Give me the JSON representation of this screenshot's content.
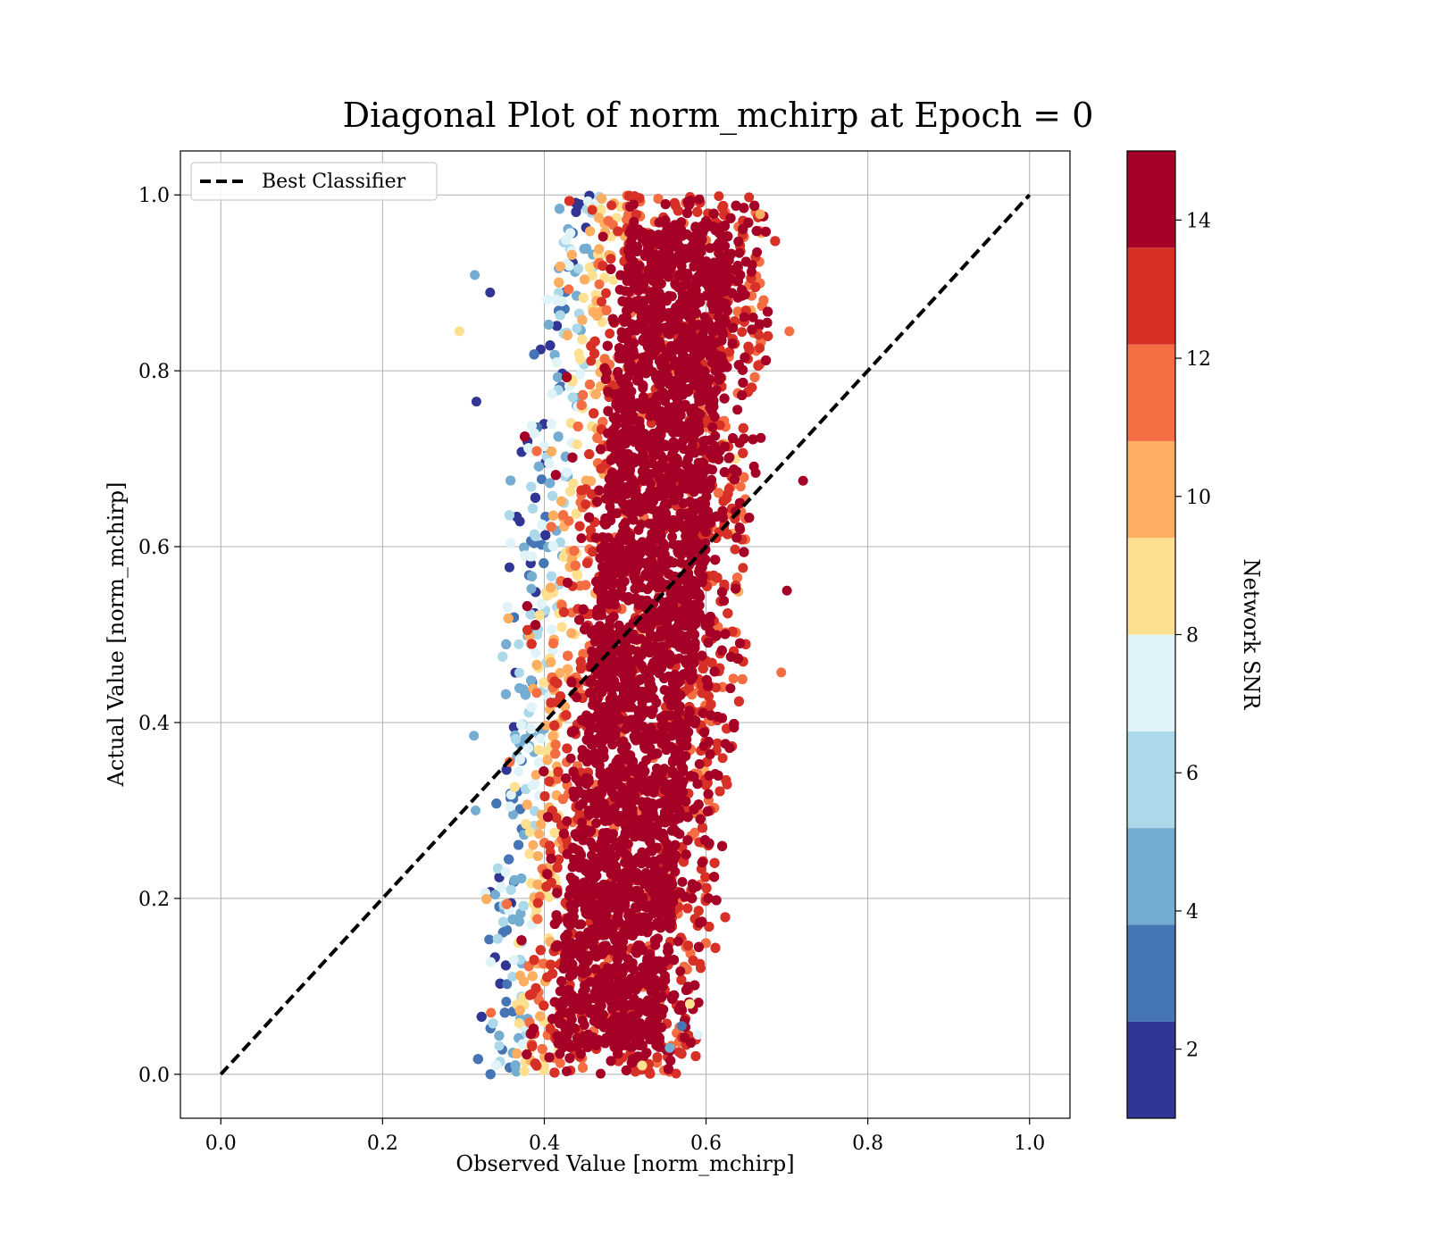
{
  "chart_data": {
    "type": "scatter",
    "title": "Diagonal Plot of norm_mchirp at Epoch = 0",
    "xlabel": "Observed Value [norm_mchirp]",
    "ylabel": "Actual Value [norm_mchirp]",
    "xlim": [
      -0.05,
      1.05
    ],
    "ylim": [
      -0.05,
      1.05
    ],
    "xticks": [
      "0.0",
      "0.2",
      "0.4",
      "0.6",
      "0.8",
      "1.0"
    ],
    "yticks": [
      "0.0",
      "0.2",
      "0.4",
      "0.6",
      "0.8",
      "1.0"
    ],
    "grid": true,
    "legend": {
      "placement": "upper-left",
      "entries": [
        "Best Classifier"
      ]
    },
    "reference_line": {
      "name": "Best Classifier",
      "style": "dashed",
      "color": "#000000",
      "x": [
        0.0,
        1.0
      ],
      "y": [
        0.0,
        1.0
      ]
    },
    "scatter_cloud": {
      "note_x_range": [
        0.3,
        0.72
      ],
      "y_range": [
        0.0,
        1.0
      ],
      "trend": "observed value ~0.45 at actual 0.0 rising to ~0.55 at actual 1.0; higher SNR concentrated in the center, lower SNR on the left edge"
    },
    "outlier_points": [
      {
        "x": 0.295,
        "y": 0.845,
        "snr": 9
      },
      {
        "x": 0.703,
        "y": 0.845,
        "snr": 12
      },
      {
        "x": 0.72,
        "y": 0.675,
        "snr": 14
      },
      {
        "x": 0.7,
        "y": 0.55,
        "snr": 14
      },
      {
        "x": 0.693,
        "y": 0.457,
        "snr": 12
      },
      {
        "x": 0.667,
        "y": 0.978,
        "snr": 10
      },
      {
        "x": 0.314,
        "y": 0.909,
        "snr": 4
      },
      {
        "x": 0.333,
        "y": 0.889,
        "snr": 1
      },
      {
        "x": 0.316,
        "y": 0.765,
        "snr": 1
      },
      {
        "x": 0.313,
        "y": 0.385,
        "snr": 4
      },
      {
        "x": 0.315,
        "y": 0.3,
        "snr": 5
      },
      {
        "x": 0.334,
        "y": 0.07,
        "snr": 12
      },
      {
        "x": 0.59,
        "y": 0.045,
        "snr": 7
      },
      {
        "x": 0.555,
        "y": 0.03,
        "snr": 5
      },
      {
        "x": 0.521,
        "y": 0.01,
        "snr": 9
      },
      {
        "x": 0.58,
        "y": 0.08,
        "snr": 8
      },
      {
        "x": 0.57,
        "y": 0.055,
        "snr": 3
      }
    ],
    "colorbar": {
      "label": "Network SNR",
      "range": [
        1,
        15
      ],
      "ticks": [
        "2",
        "4",
        "6",
        "8",
        "10",
        "12",
        "14"
      ],
      "bins": [
        {
          "from": 1.0,
          "to": 2.4,
          "color": "#313695"
        },
        {
          "from": 2.4,
          "to": 3.8,
          "color": "#4575b4"
        },
        {
          "from": 3.8,
          "to": 5.2,
          "color": "#74add1"
        },
        {
          "from": 5.2,
          "to": 6.6,
          "color": "#abd9e9"
        },
        {
          "from": 6.6,
          "to": 8.0,
          "color": "#e0f3f8"
        },
        {
          "from": 8.0,
          "to": 9.4,
          "color": "#fee090"
        },
        {
          "from": 9.4,
          "to": 10.8,
          "color": "#fdae61"
        },
        {
          "from": 10.8,
          "to": 12.2,
          "color": "#f46d43"
        },
        {
          "from": 12.2,
          "to": 13.6,
          "color": "#d73027"
        },
        {
          "from": 13.6,
          "to": 15.0,
          "color": "#a50026"
        }
      ]
    }
  }
}
